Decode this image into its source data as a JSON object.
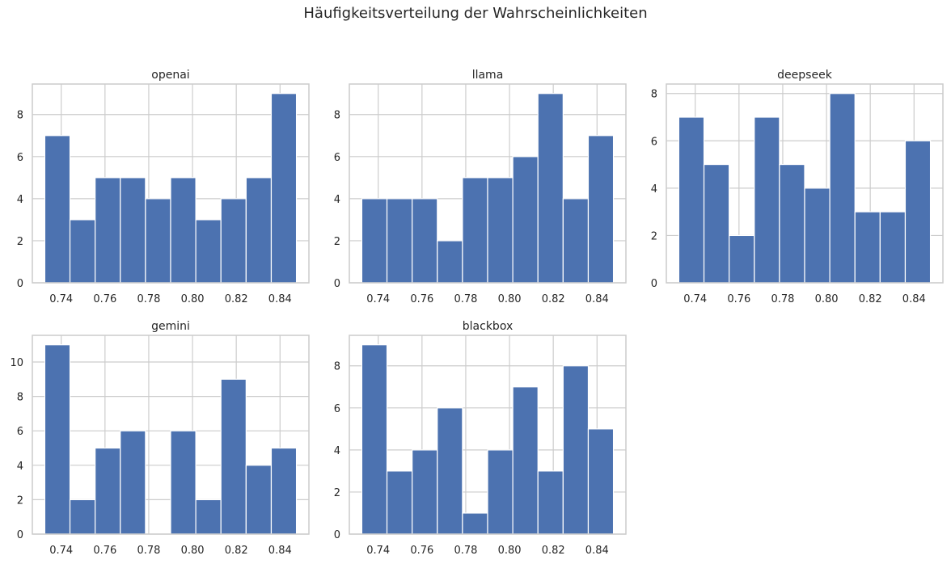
{
  "figure": {
    "title": "Häufigkeitsverteilung der Wahrscheinlichkeiten"
  },
  "colors": {
    "bar": "#4c72b0",
    "grid": "#cccccc",
    "axes_edge": "#cccccc",
    "background": "#ffffff"
  },
  "chart_data": [
    {
      "type": "bar",
      "title": "openai",
      "bin_edges": [
        0.7325,
        0.744,
        0.7555,
        0.767,
        0.7785,
        0.79,
        0.8015,
        0.813,
        0.8245,
        0.836,
        0.8475
      ],
      "values": [
        7,
        3,
        5,
        5,
        4,
        5,
        3,
        4,
        5,
        9
      ],
      "xticks": [
        "0.74",
        "0.76",
        "0.78",
        "0.80",
        "0.82",
        "0.84"
      ],
      "yticks": [
        "0",
        "2",
        "4",
        "6",
        "8"
      ],
      "xlim": [
        0.7268,
        0.8532
      ],
      "ylim": [
        0,
        9.45
      ],
      "grid": true
    },
    {
      "type": "bar",
      "title": "llama",
      "bin_edges": [
        0.7325,
        0.744,
        0.7555,
        0.767,
        0.7785,
        0.79,
        0.8015,
        0.813,
        0.8245,
        0.836,
        0.8475
      ],
      "values": [
        4,
        4,
        4,
        2,
        5,
        5,
        6,
        9,
        4,
        7
      ],
      "xticks": [
        "0.74",
        "0.76",
        "0.78",
        "0.80",
        "0.82",
        "0.84"
      ],
      "yticks": [
        "0",
        "2",
        "4",
        "6",
        "8"
      ],
      "xlim": [
        0.7268,
        0.8532
      ],
      "ylim": [
        0,
        9.45
      ],
      "grid": true
    },
    {
      "type": "bar",
      "title": "deepseek",
      "bin_edges": [
        0.7325,
        0.744,
        0.7555,
        0.767,
        0.7785,
        0.79,
        0.8015,
        0.813,
        0.8245,
        0.836,
        0.8475
      ],
      "values": [
        7,
        5,
        2,
        7,
        5,
        4,
        8,
        3,
        3,
        6
      ],
      "xticks": [
        "0.74",
        "0.76",
        "0.78",
        "0.80",
        "0.82",
        "0.84"
      ],
      "yticks": [
        "0",
        "2",
        "4",
        "6",
        "8"
      ],
      "xlim": [
        0.7268,
        0.8532
      ],
      "ylim": [
        0,
        8.4
      ],
      "grid": true
    },
    {
      "type": "bar",
      "title": "gemini",
      "bin_edges": [
        0.7325,
        0.744,
        0.7555,
        0.767,
        0.7785,
        0.79,
        0.8015,
        0.813,
        0.8245,
        0.836,
        0.8475
      ],
      "values": [
        11,
        2,
        5,
        6,
        0,
        6,
        2,
        9,
        4,
        5
      ],
      "xticks": [
        "0.74",
        "0.76",
        "0.78",
        "0.80",
        "0.82",
        "0.84"
      ],
      "yticks": [
        "0",
        "2",
        "4",
        "6",
        "8",
        "10"
      ],
      "xlim": [
        0.7268,
        0.8532
      ],
      "ylim": [
        0,
        11.55
      ],
      "grid": true
    },
    {
      "type": "bar",
      "title": "blackbox",
      "bin_edges": [
        0.7325,
        0.744,
        0.7555,
        0.767,
        0.7785,
        0.79,
        0.8015,
        0.813,
        0.8245,
        0.836,
        0.8475
      ],
      "values": [
        9,
        3,
        4,
        6,
        1,
        4,
        7,
        3,
        8,
        5
      ],
      "xticks": [
        "0.74",
        "0.76",
        "0.78",
        "0.80",
        "0.82",
        "0.84"
      ],
      "yticks": [
        "0",
        "2",
        "4",
        "6",
        "8"
      ],
      "xlim": [
        0.7268,
        0.8532
      ],
      "ylim": [
        0,
        9.45
      ],
      "grid": true
    }
  ]
}
